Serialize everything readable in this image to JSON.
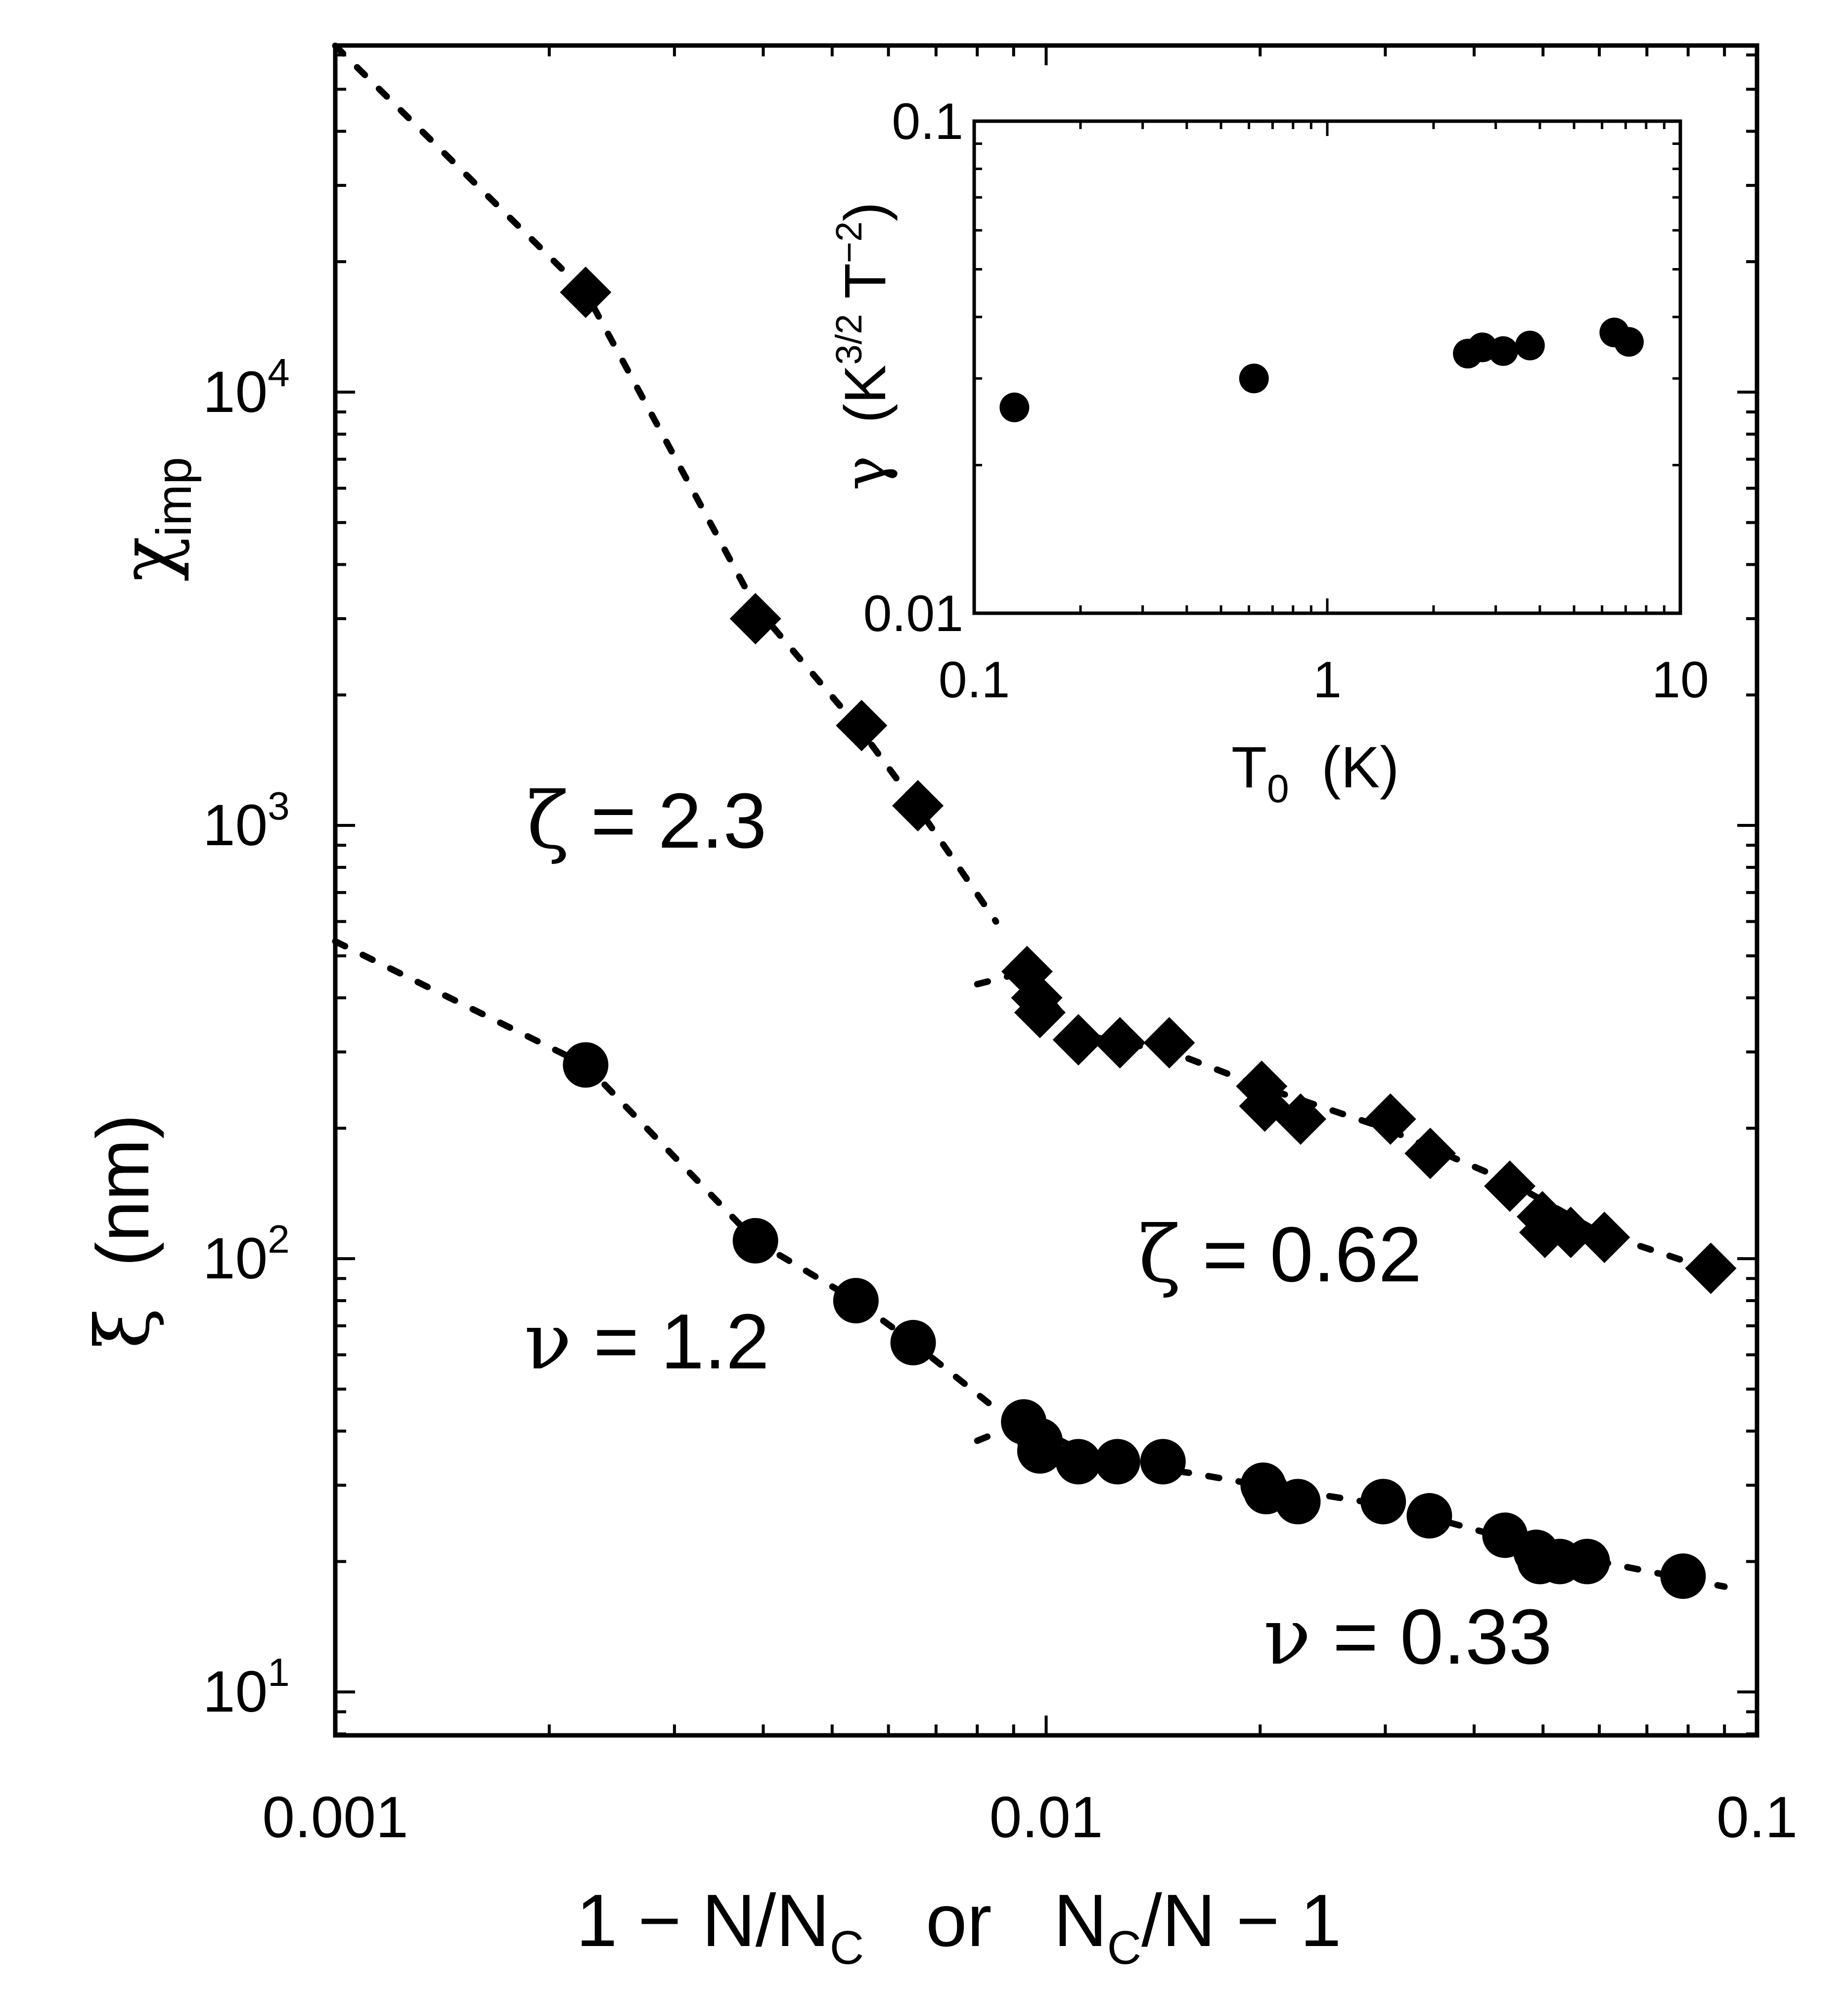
{
  "colors": {
    "ink": "#000000",
    "background": "#ffffff"
  },
  "chart_data": [
    {
      "type": "scatter",
      "x_scale": "log",
      "y_scale": "log",
      "xlim": [
        0.001,
        0.1
      ],
      "ylim": [
        7.94,
        63100
      ],
      "x_tick_labels": [
        {
          "value": 0.001,
          "label": "0.001"
        },
        {
          "value": 0.01,
          "label": "0.01"
        },
        {
          "value": 0.1,
          "label": "0.1"
        }
      ],
      "y_tick_labels": [
        {
          "value": 10,
          "base": "10",
          "exp": "1"
        },
        {
          "value": 100,
          "base": "10",
          "exp": "2"
        },
        {
          "value": 1000,
          "base": "10",
          "exp": "3"
        },
        {
          "value": 10000,
          "base": "10",
          "exp": "4"
        }
      ],
      "xlabel": {
        "part1": "1 − N/N",
        "sub1": "C",
        "mid": "   or   N",
        "sub2": "C",
        "part2": "/N − 1"
      },
      "ylabel_top": {
        "symbol": "χ",
        "sub": "imp"
      },
      "ylabel_bottom": {
        "symbol": "ξ",
        "text": "  (nm)"
      },
      "series": [
        {
          "name": "χimp",
          "marker": "diamond",
          "points": [
            [
              0.00225,
              17000
            ],
            [
              0.0039,
              3000
            ],
            [
              0.0055,
              1700
            ],
            [
              0.0066,
              1110
            ],
            [
              0.0094,
              460
            ],
            [
              0.0097,
              400
            ],
            [
              0.0098,
              370
            ],
            [
              0.0111,
              320
            ],
            [
              0.0127,
              315
            ],
            [
              0.0149,
              315
            ],
            [
              0.0201,
              250
            ],
            [
              0.0203,
              225
            ],
            [
              0.0228,
              210
            ],
            [
              0.0305,
              210
            ],
            [
              0.0347,
              175
            ],
            [
              0.0449,
              147
            ],
            [
              0.0499,
              125
            ],
            [
              0.0503,
              115
            ],
            [
              0.0547,
              115
            ],
            [
              0.061,
              112
            ],
            [
              0.0861,
              95
            ]
          ],
          "fits": [
            {
              "exponent_label": "ζ = 2.3",
              "x_range": [
                0.001,
                0.0095
              ],
              "points": [
                [
                  0.001,
                  63000
                ],
                [
                  0.00225,
                  17000
                ],
                [
                  0.0039,
                  3200
                ],
                [
                  0.0055,
                  1650
                ],
                [
                  0.0066,
                  1100
                ],
                [
                  0.0085,
                  600
                ]
              ]
            },
            {
              "exponent_label": "ζ = 0.62",
              "x_range": [
                0.008,
                0.09
              ],
              "points": [
                [
                  0.008,
                  430
                ],
                [
                  0.0094,
                  460
                ],
                [
                  0.0111,
                  330
                ],
                [
                  0.015,
                  300
                ],
                [
                  0.02,
                  250
                ],
                [
                  0.03,
                  200
                ],
                [
                  0.045,
                  150
                ],
                [
                  0.06,
                  115
                ],
                [
                  0.09,
                  92
                ]
              ]
            }
          ]
        },
        {
          "name": "ξ (nm)",
          "marker": "circle",
          "points": [
            [
              0.00225,
              280
            ],
            [
              0.0039,
              110
            ],
            [
              0.0054,
              80
            ],
            [
              0.0065,
              64
            ],
            [
              0.0093,
              42
            ],
            [
              0.0098,
              38
            ],
            [
              0.0098,
              36
            ],
            [
              0.0111,
              34
            ],
            [
              0.0126,
              34
            ],
            [
              0.0146,
              34
            ],
            [
              0.0202,
              30
            ],
            [
              0.0204,
              29
            ],
            [
              0.0226,
              27.5
            ],
            [
              0.0298,
              27.5
            ],
            [
              0.0346,
              25.5
            ],
            [
              0.0442,
              23
            ],
            [
              0.0489,
              21
            ],
            [
              0.0495,
              20
            ],
            [
              0.0528,
              20
            ],
            [
              0.0577,
              20
            ],
            [
              0.0787,
              18.5
            ]
          ],
          "fits": [
            {
              "exponent_label": "ν = 1.2",
              "x_range": [
                0.001,
                0.0095
              ],
              "points": [
                [
                  0.001,
                  540
                ],
                [
                  0.00225,
                  280
                ],
                [
                  0.0039,
                  110
                ],
                [
                  0.0054,
                  80
                ],
                [
                  0.0065,
                  64
                ],
                [
                  0.0085,
                  45
                ]
              ]
            },
            {
              "exponent_label": "ν = 0.33",
              "x_range": [
                0.008,
                0.09
              ],
              "points": [
                [
                  0.008,
                  38
                ],
                [
                  0.0093,
                  42
                ],
                [
                  0.012,
                  34
                ],
                [
                  0.016,
                  32
                ],
                [
                  0.02,
                  30
                ],
                [
                  0.03,
                  27
                ],
                [
                  0.045,
                  22.5
                ],
                [
                  0.06,
                  20
                ],
                [
                  0.09,
                  17.5
                ]
              ]
            }
          ]
        }
      ]
    },
    {
      "type": "scatter",
      "inset": true,
      "x_scale": "log",
      "y_scale": "log",
      "xlim": [
        0.1,
        10
      ],
      "ylim": [
        0.01,
        0.1
      ],
      "x_tick_labels": [
        {
          "value": 0.1,
          "label": "0.1"
        },
        {
          "value": 1,
          "label": "1"
        },
        {
          "value": 10,
          "label": "10"
        }
      ],
      "y_tick_labels": [
        {
          "value": 0.01,
          "label": "0.01"
        },
        {
          "value": 0.1,
          "label": "0.1"
        }
      ],
      "xlabel": {
        "text": "T",
        "sub": "0",
        "rest": "  (K)"
      },
      "ylabel": {
        "symbol": "γ",
        "open": "  (K",
        "sup1": "3/2",
        "mid": " T",
        "sup2": "−2",
        "close": ")"
      },
      "series": [
        {
          "marker": "circle",
          "points": [
            [
              0.13,
              0.0262
            ],
            [
              0.62,
              0.03
            ],
            [
              2.5,
              0.0337
            ],
            [
              2.75,
              0.0347
            ],
            [
              3.15,
              0.0341
            ],
            [
              3.75,
              0.035
            ],
            [
              6.5,
              0.0372
            ],
            [
              7.15,
              0.0356
            ]
          ]
        }
      ]
    }
  ]
}
